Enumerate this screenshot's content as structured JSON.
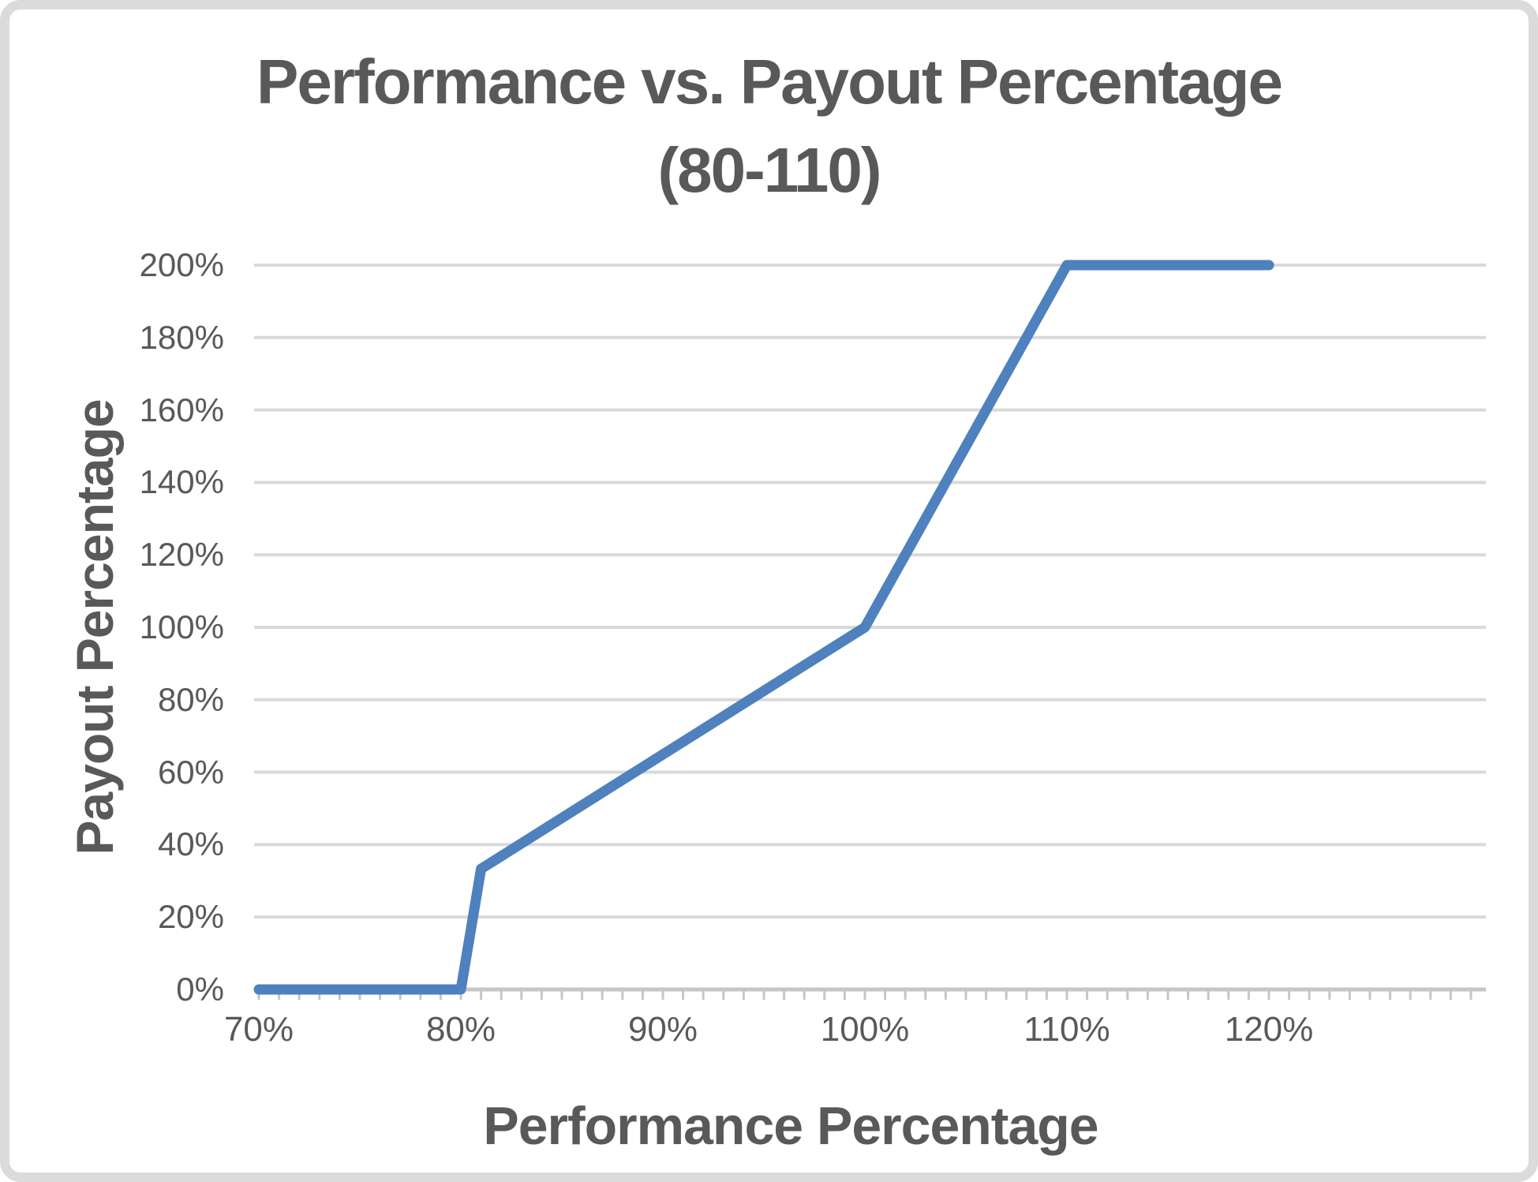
{
  "title": {
    "line1": "Performance vs. Payout Percentage",
    "line2": "(80-110)"
  },
  "colors": {
    "text": "#595959",
    "line": "#4E81BD",
    "grid": "#D9D9D9",
    "axis": "#C6C6C6",
    "frame": "#DBDBDB",
    "background": "#FFFFFF"
  },
  "chart_data": {
    "type": "line",
    "title": "Performance vs. Payout Percentage (80-110)",
    "xlabel": "Performance Percentage",
    "ylabel": "Payout Percentage",
    "xlim": [
      70,
      130
    ],
    "ylim": [
      0,
      200
    ],
    "grid": "horizontal",
    "legend": "none",
    "x_tick_values": [
      70,
      80,
      90,
      100,
      110,
      120
    ],
    "x_tick_labels": [
      "70%",
      "80%",
      "90%",
      "100%",
      "110%",
      "120%"
    ],
    "x_minor_tick_step": 1,
    "y_tick_values": [
      0,
      20,
      40,
      60,
      80,
      100,
      120,
      140,
      160,
      180,
      200
    ],
    "y_tick_labels": [
      "0%",
      "20%",
      "40%",
      "60%",
      "80%",
      "100%",
      "120%",
      "140%",
      "160%",
      "180%",
      "200%"
    ],
    "series": [
      {
        "x": [
          70,
          80,
          81,
          100,
          110,
          120
        ],
        "y": [
          0,
          0,
          33.3,
          100,
          200,
          200
        ]
      }
    ]
  }
}
